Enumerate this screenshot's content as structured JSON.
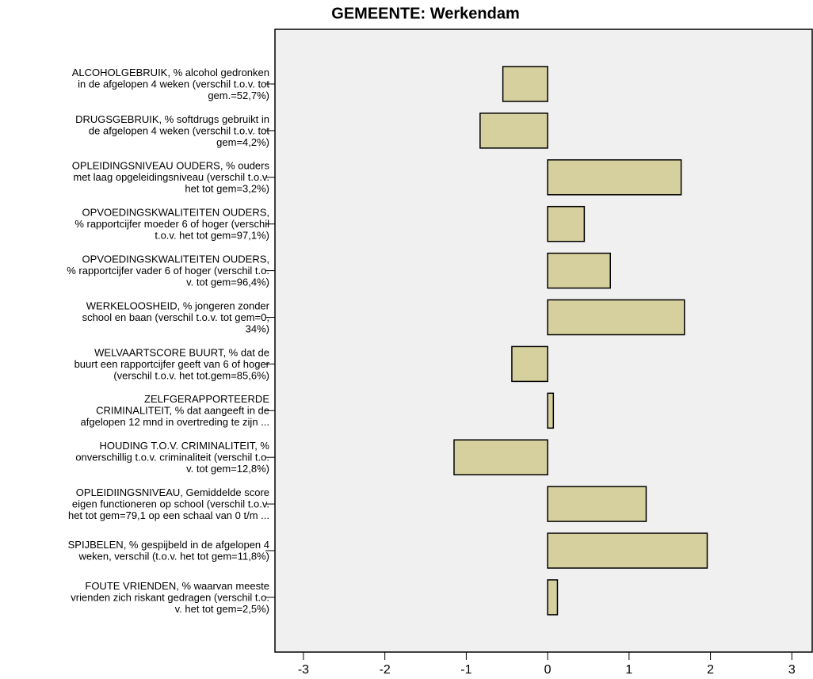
{
  "chart_data": {
    "type": "barh",
    "title": "GEMEENTE: Werkendam",
    "categories": [
      [
        "ALCOHOLGEBRUIK, % alcohol gedronken",
        "in de afgelopen 4 weken (verschil t.o.v. tot",
        "gem.=52,7%)"
      ],
      [
        "DRUGSGEBRUIK, % softdrugs gebruikt in",
        "de afgelopen 4 weken (verschil t.o.v. tot",
        "gem=4,2%)"
      ],
      [
        "OPLEIDINGSNIVEAU OUDERS, % ouders",
        "met laag opgeleidingsniveau (verschil t.o.v.",
        "het tot gem=3,2%)"
      ],
      [
        "OPVOEDINGSKWALITEITEN OUDERS,",
        "% rapportcijfer moeder 6 of hoger (verschil",
        "t.o.v. het tot gem=97,1%)"
      ],
      [
        "OPVOEDINGSKWALITEITEN OUDERS,",
        "% rapportcijfer vader 6 of hoger (verschil t.o.",
        "v. tot gem=96,4%)"
      ],
      [
        "WERKELOOSHEID, % jongeren zonder",
        "school en baan (verschil t.o.v. tot gem=0,",
        "34%)"
      ],
      [
        "WELVAARTSCORE BUURT, % dat de",
        "buurt een rapportcijfer geeft van 6 of hoger",
        "(verschil t.o.v. het tot.gem=85,6%)"
      ],
      [
        "ZELFGERAPPORTEERDE",
        "CRIMINALITEIT, % dat aangeeft in de",
        "afgelopen 12 mnd in overtreding te zijn ..."
      ],
      [
        "HOUDING T.O.V. CRIMINALITEIT, %",
        "onverschillig t.o.v. criminaliteit (verschil t.o.",
        "v. tot gem=12,8%)"
      ],
      [
        "OPLEIDIINGSNIVEAU, Gemiddelde score",
        "eigen functioneren op school (verschil t.o.v.",
        "het tot gem=79,1 op een schaal van 0 t/m ..."
      ],
      [
        "SPIJBELEN, % gespijbeld in de afgelopen 4",
        "weken, verschil (t.o.v. het tot gem=11,8%)"
      ],
      [
        "FOUTE VRIENDEN, % waarvan meeste",
        "vrienden zich riskant gedragen (verschil t.o.",
        "v. het tot gem=2,5%)"
      ]
    ],
    "values": [
      -0.55,
      -0.83,
      1.64,
      0.45,
      0.77,
      1.68,
      -0.44,
      0.07,
      -1.15,
      1.21,
      1.96,
      0.12
    ],
    "color": "#d6d09e",
    "xlim": [
      -3.35,
      3.25
    ],
    "xticks": [
      -3,
      -2,
      -1,
      0,
      1,
      2,
      3
    ]
  }
}
